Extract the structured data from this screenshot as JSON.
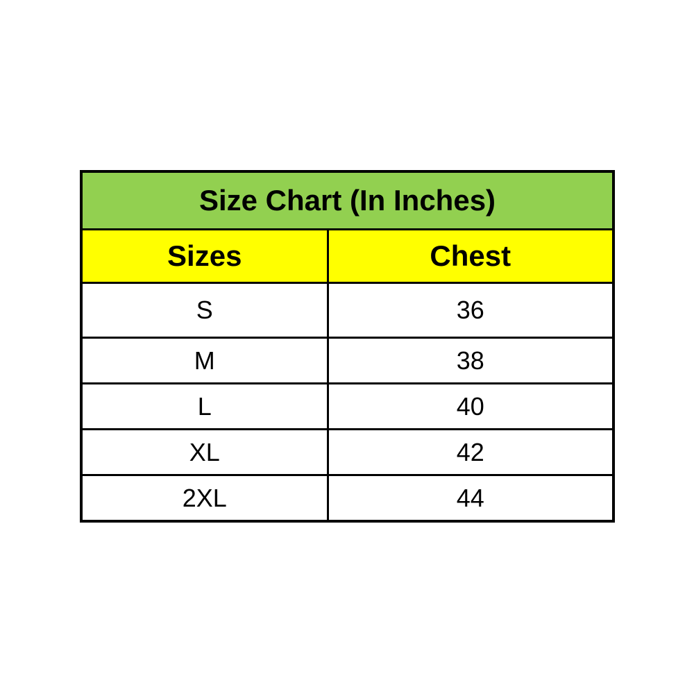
{
  "colors": {
    "title_bg": "#92d050",
    "header_bg": "#ffff00",
    "row_bg": "#ffffff",
    "border": "#000000",
    "text": "#000000"
  },
  "table": {
    "title": "Size Chart (In Inches)",
    "columns": [
      "Sizes",
      "Chest"
    ],
    "rows": [
      [
        "S",
        "36"
      ],
      [
        "M",
        "38"
      ],
      [
        "L",
        "40"
      ],
      [
        "XL",
        "42"
      ],
      [
        "2XL",
        "44"
      ]
    ]
  },
  "chart_data": {
    "type": "table",
    "title": "Size Chart (In Inches)",
    "columns": [
      "Sizes",
      "Chest"
    ],
    "rows": [
      [
        "S",
        36
      ],
      [
        "M",
        38
      ],
      [
        "L",
        40
      ],
      [
        "XL",
        42
      ],
      [
        "2XL",
        44
      ]
    ],
    "layout_hints": {
      "title_background": "#92d050",
      "header_background": "#ffff00",
      "body_background": "#ffffff",
      "grid": "on",
      "text_align": "center"
    }
  }
}
